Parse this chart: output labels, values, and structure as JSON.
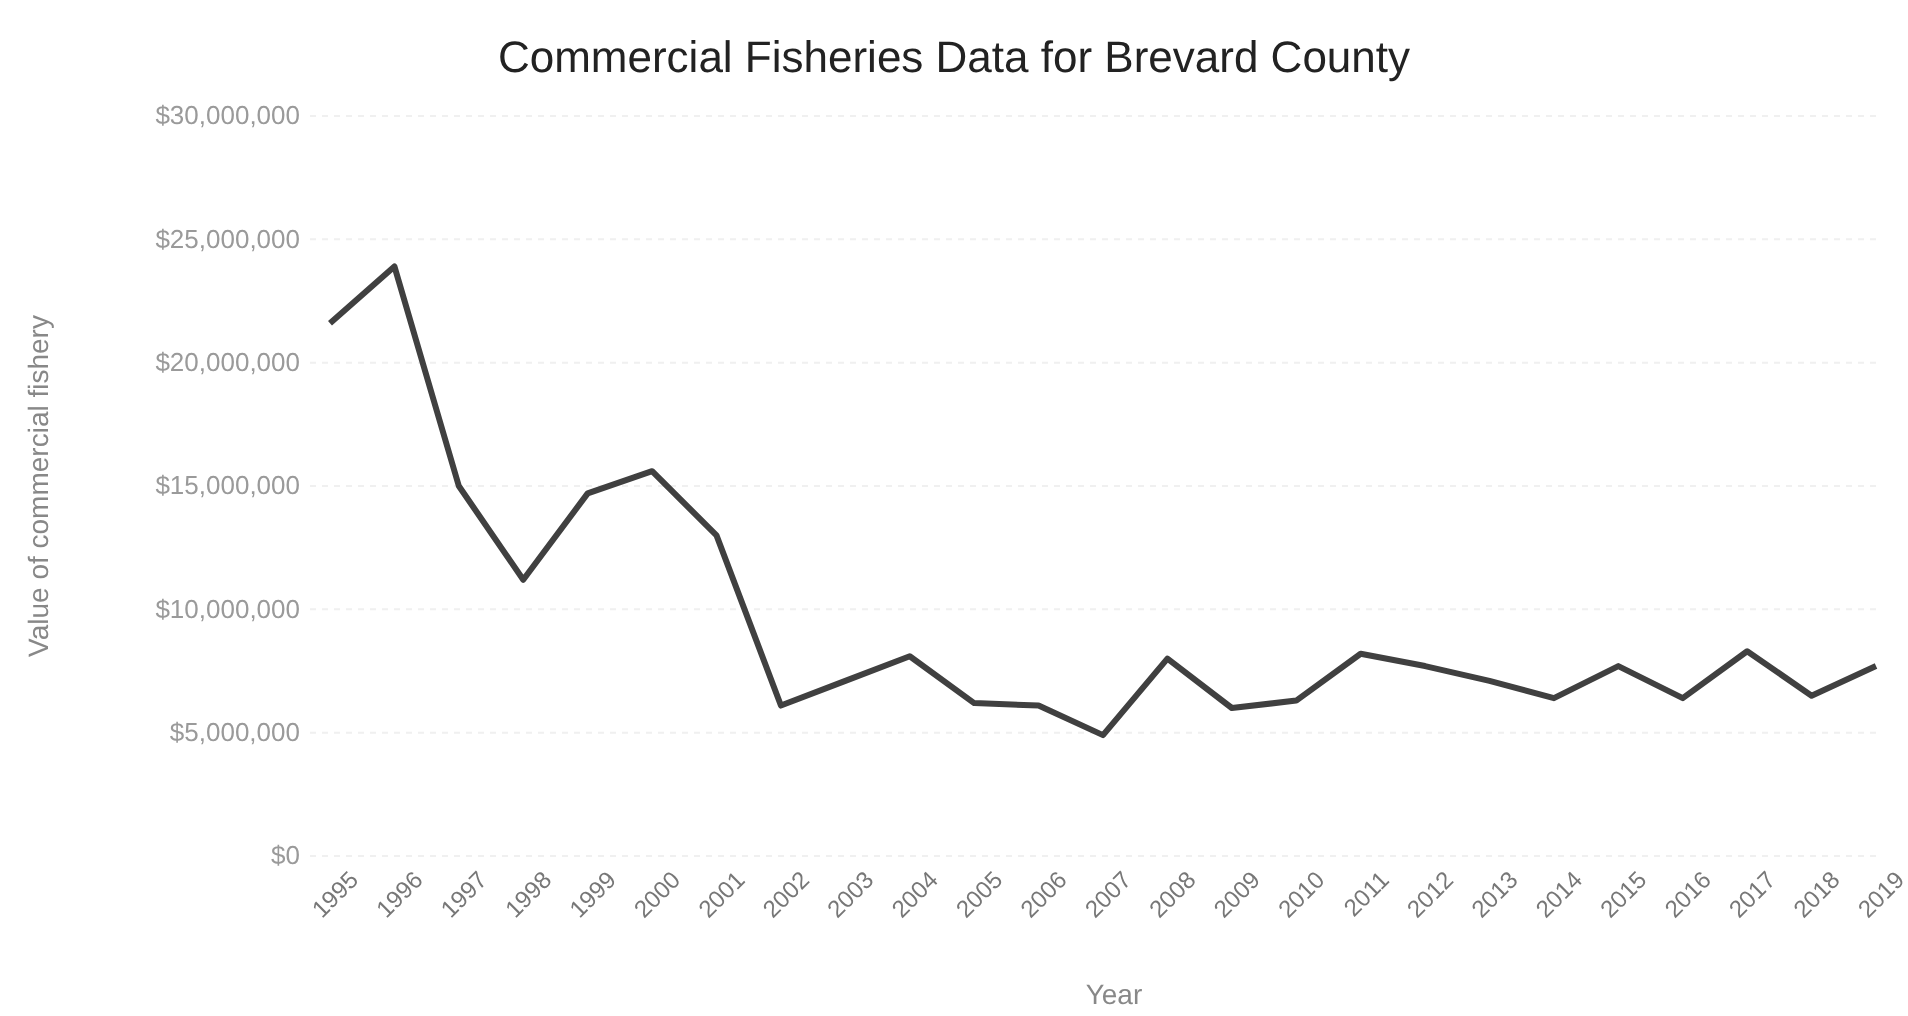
{
  "chart_data": {
    "type": "line",
    "title": "Commercial Fisheries Data for Brevard County",
    "xlabel": "Year",
    "ylabel": "Value of commercial fishery",
    "categories": [
      "1995",
      "1996",
      "1997",
      "1998",
      "1999",
      "2000",
      "2001",
      "2002",
      "2003",
      "2004",
      "2005",
      "2006",
      "2007",
      "2008",
      "2009",
      "2010",
      "2011",
      "2012",
      "2013",
      "2014",
      "2015",
      "2016",
      "2017",
      "2018",
      "2019"
    ],
    "series": [
      {
        "color": "#404040",
        "values": [
          21600000.0,
          23900000.0,
          15000000.0,
          11200000.0,
          14700000.0,
          15600000.0,
          13000000.0,
          6100000.0,
          7100000.0,
          8100000.0,
          6200000.0,
          6100000.0,
          4900000.0,
          8000000.0,
          6000000.0,
          6300000.0,
          8200000.0,
          7700000.0,
          7100000.0,
          6400000.0,
          7700000.0,
          6400000.0,
          8300000.0,
          6500000.0,
          7700000.0
        ]
      }
    ],
    "ylim": [
      0,
      30000000
    ],
    "yticks": [
      {
        "value": 0,
        "label": "$0"
      },
      {
        "value": 5000000,
        "label": "$5,000,000"
      },
      {
        "value": 10000000,
        "label": "$10,000,000"
      },
      {
        "value": 15000000,
        "label": "$15,000,000"
      },
      {
        "value": 20000000,
        "label": "$20,000,000"
      },
      {
        "value": 25000000,
        "label": "$25,000,000"
      },
      {
        "value": 30000000,
        "label": "$30,000,000"
      }
    ],
    "grid": "y",
    "line_style": "solid",
    "marker": "none"
  }
}
